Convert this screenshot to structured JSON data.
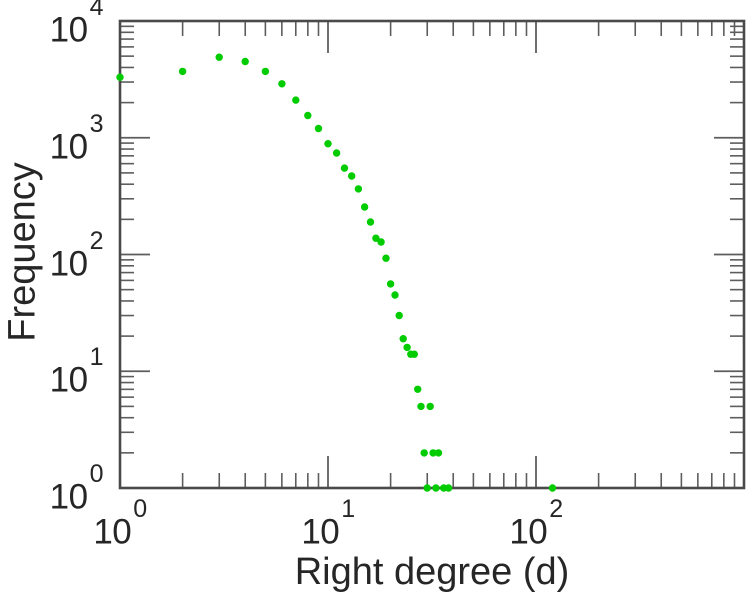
{
  "figure": {
    "background": "#ffffff",
    "text_color": "#262626",
    "frame_color": "#4a4a4a",
    "tick_color": "#5d5d5d"
  },
  "chart_data": {
    "type": "scatter",
    "title": "",
    "xlabel": "Right degree (d)",
    "ylabel": "Frequency",
    "xscale": "log",
    "yscale": "log",
    "xlim": [
      1,
      1000
    ],
    "ylim": [
      1,
      10000
    ],
    "grid": false,
    "legend": null,
    "frame": "box-with-inward-ticks",
    "marker": {
      "shape": "circle",
      "color": "#00cc00",
      "radius": 3.7
    },
    "x_tick_labels": [
      {
        "value": 1,
        "base": "10",
        "exp": "0"
      },
      {
        "value": 10,
        "base": "10",
        "exp": "1"
      },
      {
        "value": 100,
        "base": "10",
        "exp": "2"
      }
    ],
    "y_tick_labels": [
      {
        "value": 1,
        "base": "10",
        "exp": "0"
      },
      {
        "value": 10,
        "base": "10",
        "exp": "1"
      },
      {
        "value": 100,
        "base": "10",
        "exp": "2"
      },
      {
        "value": 1000,
        "base": "10",
        "exp": "3"
      },
      {
        "value": 10000,
        "base": "10",
        "exp": "4"
      }
    ],
    "series": [
      {
        "name": "right-degree-frequency",
        "color": "#00cc00",
        "points": [
          [
            1,
            3300
          ],
          [
            2,
            3700
          ],
          [
            3,
            4900
          ],
          [
            4,
            4500
          ],
          [
            5,
            3700
          ],
          [
            6,
            2900
          ],
          [
            7,
            2100
          ],
          [
            8,
            1550
          ],
          [
            9,
            1200
          ],
          [
            10,
            890
          ],
          [
            11,
            740
          ],
          [
            12,
            550
          ],
          [
            13,
            470
          ],
          [
            14,
            365
          ],
          [
            15,
            255
          ],
          [
            16,
            190
          ],
          [
            17,
            138
          ],
          [
            18,
            128
          ],
          [
            19,
            93
          ],
          [
            20,
            56
          ],
          [
            21,
            45
          ],
          [
            22,
            30
          ],
          [
            23,
            19
          ],
          [
            24,
            16
          ],
          [
            25,
            14
          ],
          [
            26,
            14
          ],
          [
            27,
            7
          ],
          [
            28,
            5
          ],
          [
            31,
            5
          ],
          [
            29,
            2
          ],
          [
            32,
            2
          ],
          [
            34,
            2
          ],
          [
            30,
            1
          ],
          [
            33,
            1
          ],
          [
            36,
            1
          ],
          [
            38,
            1
          ],
          [
            120,
            1
          ]
        ]
      }
    ]
  }
}
